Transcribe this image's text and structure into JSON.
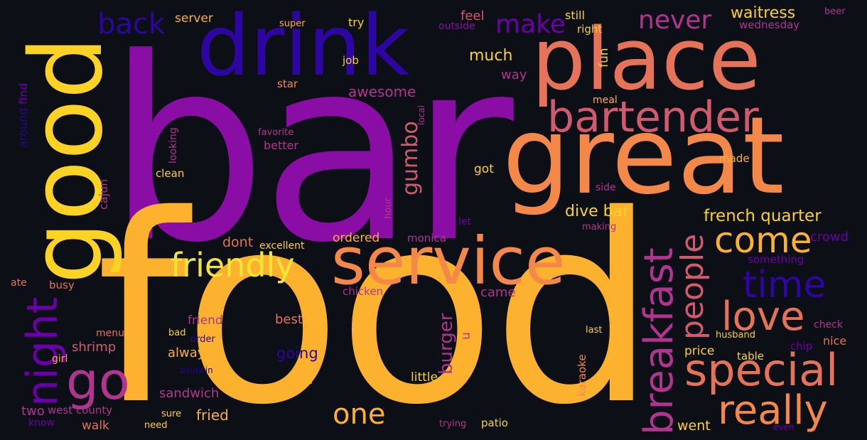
{
  "words": {
    "bar": "bar",
    "food": "food",
    "place": "place",
    "drink": "drink",
    "great": "great",
    "good": "good",
    "service": "service",
    "bartender": "bartender",
    "go": "go",
    "night": "night",
    "special": "special",
    "really": "really",
    "love": "love",
    "time": "time",
    "come": "come",
    "friendly": "friendly",
    "breakfast": "breakfast",
    "people": "people",
    "one": "one",
    "back": "back",
    "make": "make",
    "never": "never",
    "waitress": "waitress",
    "gumbo": "gumbo",
    "french_quarter": "french quarter",
    "dive_bar": "dive bar",
    "much": "much",
    "awesome": "awesome",
    "burger": "burger",
    "server": "server",
    "try": "try",
    "super": "super",
    "feel": "feel",
    "outside": "outside",
    "still": "still",
    "right": "right",
    "beer": "beer",
    "wednesday": "wednesday",
    "job": "job",
    "way": "way",
    "star": "star",
    "fun": "fun",
    "meal": "meal",
    "local": "local",
    "favorite": "favorite",
    "looking": "looking",
    "better": "better",
    "clean": "clean",
    "around": "around",
    "find": "find",
    "cajun": "cajun",
    "got": "got",
    "made": "made",
    "hour": "hour",
    "side": "side",
    "let": "let",
    "making": "making",
    "ordered": "ordered",
    "dont": "dont",
    "excellent": "excellent",
    "monica": "monica",
    "crowd": "crowd",
    "something": "something",
    "ate": "ate",
    "busy": "busy",
    "chicken": "chicken",
    "came": "came",
    "friend": "friend",
    "best": "best",
    "menu": "menu",
    "bad": "bad",
    "order": "order",
    "shrimp": "shrimp",
    "always": "always",
    "going": "going",
    "u": "u",
    "last": "last",
    "check": "check",
    "husband": "husband",
    "nice": "nice",
    "chip": "chip",
    "price": "price",
    "table": "table",
    "karaoke": "karaoke",
    "girl": "girl",
    "baldwin": "baldwin",
    "served": "served",
    "little": "little",
    "sandwich": "sandwich",
    "two": "two",
    "west_county": "west county",
    "sure": "sure",
    "fried": "fried",
    "know": "know",
    "walk": "walk",
    "need": "need",
    "trying": "trying",
    "patio": "patio",
    "went": "went",
    "even": "even"
  }
}
